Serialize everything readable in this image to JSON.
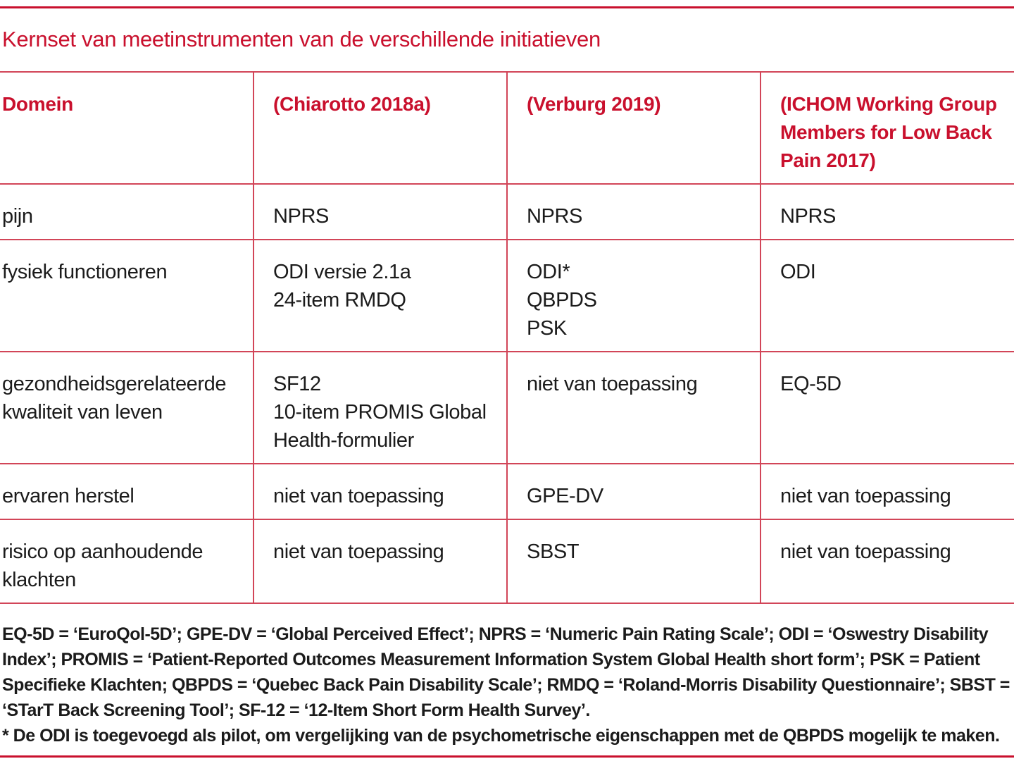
{
  "title": "Kernset van meetinstrumenten van de verschillende initiatieven",
  "colors": {
    "red_text": "#c9102d",
    "line": "#d24558",
    "ink": "#1b1b1b",
    "background": "#ffffff"
  },
  "table": {
    "columns": [
      "Domein",
      "(Chiarotto 2018a)",
      "(Verburg 2019)",
      "(ICHOM Working Group Members for Low Back Pain 2017)"
    ],
    "rows": [
      [
        "pijn",
        "NPRS",
        "NPRS",
        "NPRS"
      ],
      [
        "fysiek functioneren",
        "ODI versie 2.1a\n24-item RMDQ",
        "ODI*\nQBPDS\nPSK",
        "ODI"
      ],
      [
        "gezondheidsgerelateerde kwaliteit van leven",
        "SF12\n10-item PROMIS Global Health-formulier",
        "niet van toepassing",
        "EQ-5D"
      ],
      [
        "ervaren herstel",
        "niet van toepassing",
        "GPE-DV",
        "niet van toepassing"
      ],
      [
        "risico op aanhoudende klachten",
        "niet van toepassing",
        "SBST",
        "niet van toepassing"
      ]
    ]
  },
  "footnotes": {
    "abbreviations": "EQ-5D = ‘EuroQol-5D’; GPE-DV = ‘Global Perceived Effect’; NPRS = ‘Numeric Pain Rating Scale’; ODI = ‘Oswestry Disability Index’; PROMIS = ‘Patient-Reported Outcomes Measurement Information System Global Health short form’; PSK = Patient Specifieke Klachten; QBPDS = ‘Quebec Back Pain Disability Scale’; RMDQ = ‘Roland-Morris Disability Questionnaire’; SBST = ‘STarT Back Screening Tool’; SF-12 = ‘12-Item Short Form Health Survey’.",
    "asterisk": "* De ODI is toegevoegd als pilot, om vergelijking van de psychometrische eigenschappen met de QBPDS mogelijk te maken."
  }
}
